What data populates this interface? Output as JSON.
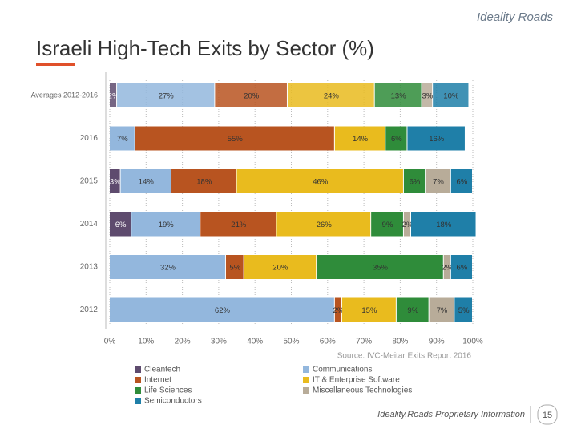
{
  "logo": "Ideality Roads",
  "chart_data": {
    "type": "stacked-bar-horizontal",
    "title": "Israeli High-Tech Exits by Sector (%)",
    "categories": [
      "Averages 2012-2016",
      "2016",
      "2015",
      "2014",
      "2013",
      "2012"
    ],
    "series": [
      {
        "name": "Cleantech",
        "color": "#5e4b6e",
        "values": [
          2,
          null,
          3,
          6,
          null,
          null
        ],
        "value_labels": [
          "2%",
          null,
          "3%",
          "6%",
          null,
          null
        ]
      },
      {
        "name": "Communications",
        "color": "#93b7dd",
        "values": [
          27,
          7,
          14,
          19,
          32,
          62
        ],
        "value_labels": [
          "27%",
          "7%",
          "14%",
          "19%",
          "32%",
          "62%"
        ]
      },
      {
        "name": "Internet",
        "color": "#b85420",
        "values": [
          20,
          55,
          18,
          21,
          5,
          2
        ],
        "value_labels": [
          "20%",
          "55%",
          "18%",
          "21%",
          "5%",
          "2%"
        ]
      },
      {
        "name": "IT & Enterprise Software",
        "color": "#e9bb1e",
        "values": [
          24,
          14,
          46,
          26,
          20,
          15
        ],
        "value_labels": [
          "24%",
          "14%",
          "46%",
          "26%",
          "20%",
          "15%"
        ]
      },
      {
        "name": "Life Sciences",
        "color": "#2f8c3a",
        "values": [
          13,
          6,
          6,
          9,
          35,
          9
        ],
        "value_labels": [
          "13%",
          "6%",
          "6%",
          "9%",
          "35%",
          "9%"
        ]
      },
      {
        "name": "Miscellaneous Technologies",
        "color": "#b8ac99",
        "values": [
          3,
          null,
          7,
          2,
          2,
          7
        ],
        "value_labels": [
          "3%",
          null,
          "7%",
          "2%",
          "2%",
          "7%"
        ]
      },
      {
        "name": "Semiconductors",
        "color": "#1f7fa8",
        "values": [
          10,
          16,
          6,
          18,
          6,
          5
        ],
        "value_labels": [
          "10%",
          "16%",
          "6%",
          "18%",
          "6%",
          "5%"
        ]
      }
    ],
    "xlim": [
      0,
      100
    ],
    "xticks": [
      {
        "value": 0,
        "label": "0%"
      },
      {
        "value": 10,
        "label": "10%"
      },
      {
        "value": 20,
        "label": "20%"
      },
      {
        "value": 30,
        "label": "30%"
      },
      {
        "value": 40,
        "label": "40%"
      },
      {
        "value": 50,
        "label": "50%"
      },
      {
        "value": 60,
        "label": "60%"
      },
      {
        "value": 70,
        "label": "70%"
      },
      {
        "value": 80,
        "label": "80%"
      },
      {
        "value": 90,
        "label": "90%"
      },
      {
        "value": 100,
        "label": "100%"
      }
    ],
    "grid": true,
    "source": "Source: IVC-Meitar Exits Report 2016"
  },
  "footer": {
    "text": "Ideality.Roads Proprietary Information",
    "page": "15"
  }
}
